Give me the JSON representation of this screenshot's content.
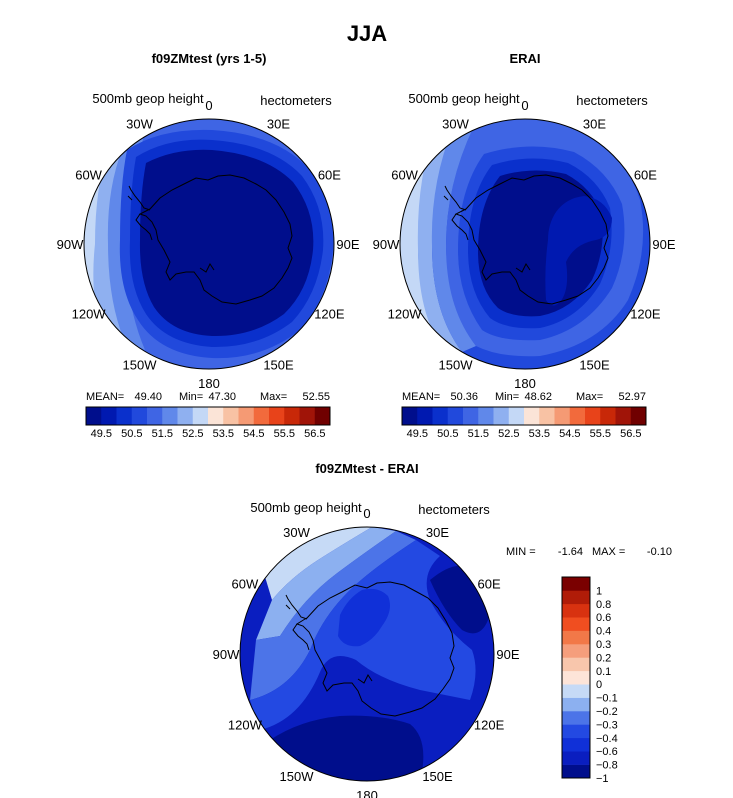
{
  "page_title": "JJA",
  "palette": {
    "abs": [
      "#000e8c",
      "#0019b0",
      "#0a30cc",
      "#2149dc",
      "#3f65e4",
      "#6088ea",
      "#8fb0f0",
      "#c4d8f6",
      "#fbe4d7",
      "#f8c2a4",
      "#f59a74",
      "#f26a3c",
      "#e8431a",
      "#c82808",
      "#a01408",
      "#700000"
    ],
    "diff": [
      "#000e8c",
      "#0a1ec0",
      "#1030d8",
      "#2349e2",
      "#4c74e8",
      "#8cb0f0",
      "#c6daf6",
      "#fde4d8",
      "#f8c6ac",
      "#f59e7c",
      "#f27848",
      "#f04e20",
      "#d83210",
      "#b01c08",
      "#7a0000"
    ],
    "coast": "#000000"
  },
  "chart_data": [
    {
      "type": "polar-contour",
      "title": "f09ZMtest (yrs 1-5)",
      "field_label": "500mb geop height",
      "units_label": "hectometers",
      "lon_labels": [
        "0",
        "30E",
        "60E",
        "90E",
        "120E",
        "150E",
        "180",
        "150W",
        "120W",
        "90W",
        "60W",
        "30W"
      ],
      "stats": {
        "mean_label": "MEAN=",
        "mean": "49.40",
        "min_label": "Min=",
        "min": "47.30",
        "max_label": "Max=",
        "max": "52.55"
      },
      "colorbar_ticks": [
        "49.5",
        "50.5",
        "51.5",
        "52.5",
        "53.5",
        "54.5",
        "55.5",
        "56.5"
      ],
      "levels": [
        49.5,
        50.0,
        50.5,
        51.0,
        51.5,
        52.0,
        52.5,
        53.0,
        53.5,
        54.0,
        54.5,
        55.0,
        55.5,
        56.0,
        56.5
      ]
    },
    {
      "type": "polar-contour",
      "title": "ERAI",
      "field_label": "500mb geop height",
      "units_label": "hectometers",
      "lon_labels": [
        "0",
        "30E",
        "60E",
        "90E",
        "120E",
        "150E",
        "180",
        "150W",
        "120W",
        "90W",
        "60W",
        "30W"
      ],
      "stats": {
        "mean_label": "MEAN=",
        "mean": "50.36",
        "min_label": "Min=",
        "min": "48.62",
        "max_label": "Max=",
        "max": "52.97"
      },
      "colorbar_ticks": [
        "49.5",
        "50.5",
        "51.5",
        "52.5",
        "53.5",
        "54.5",
        "55.5",
        "56.5"
      ],
      "levels": [
        49.5,
        50.0,
        50.5,
        51.0,
        51.5,
        52.0,
        52.5,
        53.0,
        53.5,
        54.0,
        54.5,
        55.0,
        55.5,
        56.0,
        56.5
      ]
    },
    {
      "type": "polar-contour",
      "title": "f09ZMtest - ERAI",
      "field_label": "500mb geop height",
      "units_label": "hectometers",
      "lon_labels": [
        "0",
        "30E",
        "60E",
        "90E",
        "120E",
        "150E",
        "180",
        "150W",
        "120W",
        "90W",
        "60W",
        "30W"
      ],
      "stats": {
        "min_label": "MIN =",
        "min": "-1.64",
        "max_label": "MAX =",
        "max": "-0.10"
      },
      "colorbar_labels": [
        "1",
        "0.8",
        "0.6",
        "0.4",
        "0.3",
        "0.2",
        "0.1",
        "0",
        "−0.1",
        "−0.2",
        "−0.3",
        "−0.4",
        "−0.6",
        "−0.8",
        "−1"
      ],
      "levels": [
        -1,
        -0.8,
        -0.6,
        -0.4,
        -0.3,
        -0.2,
        -0.1,
        0,
        0.1,
        0.2,
        0.3,
        0.4,
        0.6,
        0.8,
        1
      ]
    }
  ]
}
